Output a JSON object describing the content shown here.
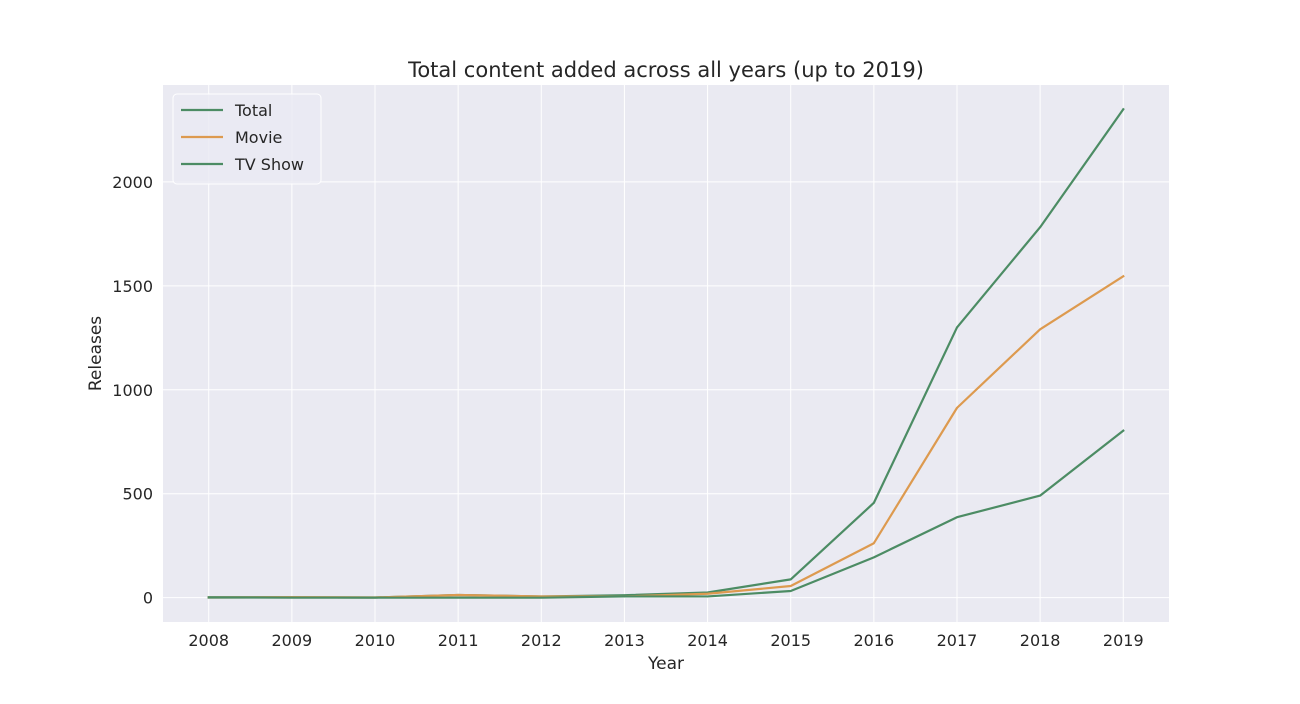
{
  "chart_data": {
    "type": "line",
    "title": "Total content added across all years (up to 2019)",
    "xlabel": "Year",
    "ylabel": "Releases",
    "x": [
      2008,
      2009,
      2010,
      2011,
      2012,
      2013,
      2014,
      2015,
      2016,
      2017,
      2018,
      2019
    ],
    "xlim": [
      2007.45,
      2019.55
    ],
    "ylim": [
      -117,
      2466
    ],
    "yticks": [
      0,
      500,
      1000,
      1500,
      2000
    ],
    "grid": true,
    "legend_position": "top-left",
    "background_color": "#eaeaf2",
    "grid_color": "#ffffff",
    "series": [
      {
        "name": "Total",
        "color": "#4c8c64",
        "values": [
          2,
          2,
          1,
          13,
          6,
          12,
          25,
          88,
          456,
          1300,
          1782,
          2349
        ]
      },
      {
        "name": "Movie",
        "color": "#dd9a4f",
        "values": [
          1,
          2,
          1,
          13,
          6,
          6,
          19,
          56,
          262,
          913,
          1291,
          1546
        ]
      },
      {
        "name": "TV Show",
        "color": "#4c8c64",
        "values": [
          1,
          0,
          0,
          0,
          0,
          6,
          6,
          32,
          194,
          387,
          491,
          803
        ]
      }
    ]
  }
}
